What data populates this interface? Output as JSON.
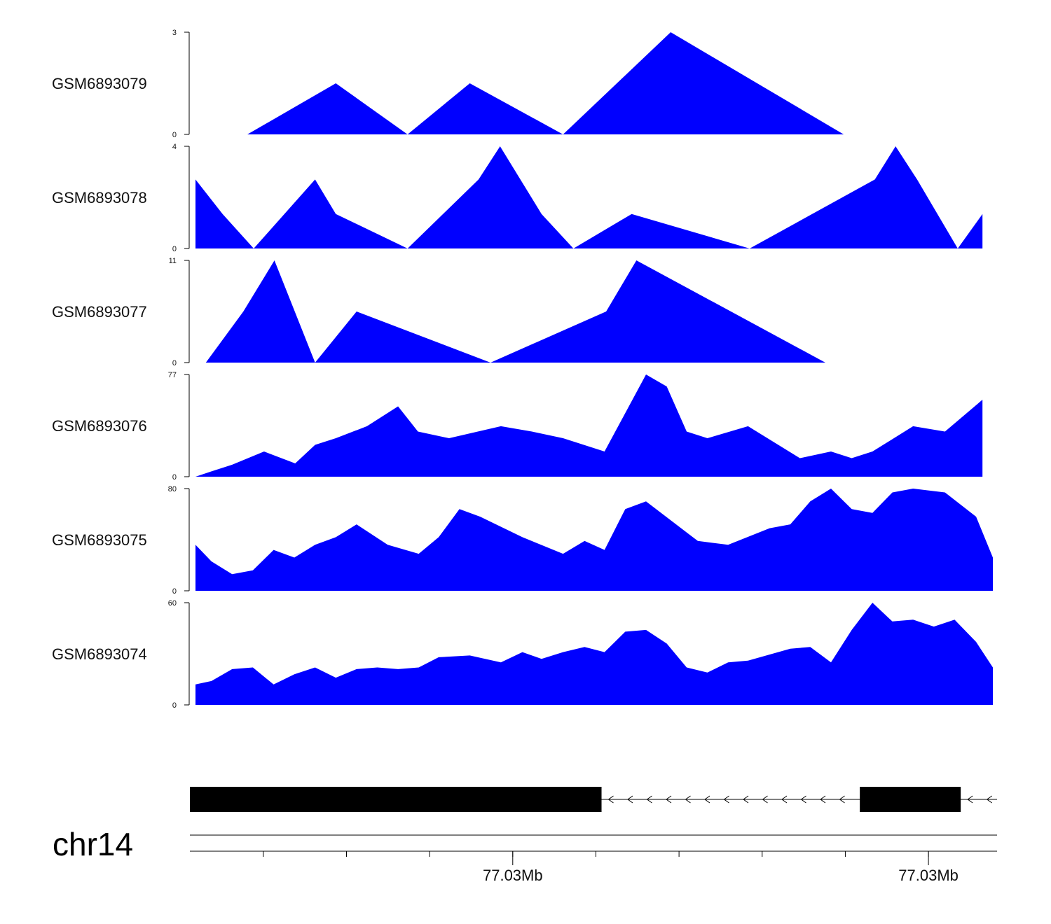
{
  "colors": {
    "fill": "#0000ff",
    "axis": "#000000",
    "gene": "#000000",
    "text": "#111111"
  },
  "chart_data": {
    "type": "area",
    "title": "",
    "x_range": [
      0,
      100
    ],
    "tracks": [
      {
        "name": "GSM6893079",
        "ymax": 3,
        "ymin": 0,
        "ymax_label": "3",
        "ymin_label": "0",
        "x": [
          6.5,
          17.6,
          26.6,
          34.4,
          46.1,
          59.6,
          81.3
        ],
        "values": [
          0,
          1.5,
          0,
          1.5,
          0,
          3,
          0
        ]
      },
      {
        "name": "GSM6893078",
        "ymax": 4,
        "ymin": 0,
        "ymax_label": "4",
        "ymin_label": "0",
        "x": [
          0,
          3.4,
          7.3,
          15.0,
          17.6,
          26.6,
          35.5,
          38.2,
          43.4,
          47.4,
          54.7,
          69.5,
          85.2,
          87.8,
          90.5,
          95.6,
          98.7
        ],
        "values": [
          2.7,
          1.35,
          0,
          2.7,
          1.35,
          0,
          2.7,
          4,
          1.35,
          0,
          1.35,
          0,
          2.7,
          4,
          2.7,
          0,
          1.35
        ]
      },
      {
        "name": "GSM6893077",
        "ymax": 11,
        "ymin": 0,
        "ymax_label": "11",
        "ymin_label": "0",
        "x": [
          1.3,
          6.0,
          9.9,
          15.0,
          20.2,
          37.0,
          51.5,
          55.3,
          79.0
        ],
        "values": [
          0,
          5.5,
          11,
          0,
          5.5,
          0,
          5.5,
          11,
          0
        ]
      },
      {
        "name": "GSM6893076",
        "ymax": 77,
        "ymin": 0,
        "ymax_label": "77",
        "ymin_label": "0",
        "x": [
          0,
          2.0,
          4.6,
          8.6,
          12.5,
          15.0,
          17.6,
          21.5,
          25.4,
          27.9,
          31.8,
          38.3,
          42.2,
          46.1,
          51.3,
          56.5,
          59.1,
          61.6,
          64.2,
          69.3,
          75.8,
          79.7,
          82.3,
          84.9,
          90.0,
          94.0,
          98.7
        ],
        "values": [
          0,
          4,
          9,
          19,
          10,
          24,
          29,
          38,
          53,
          34,
          29,
          38,
          34,
          29,
          19,
          77,
          68,
          34,
          29,
          38,
          14,
          19,
          14,
          19,
          38,
          34,
          58
        ]
      },
      {
        "name": "GSM6893075",
        "ymax": 80,
        "ymin": 0,
        "ymax_label": "80",
        "ymin_label": "0",
        "x": [
          0,
          2.0,
          4.6,
          7.2,
          9.8,
          12.4,
          15.0,
          17.6,
          20.2,
          24.1,
          28.0,
          30.5,
          33.1,
          35.7,
          41.0,
          46.1,
          48.8,
          51.3,
          53.9,
          56.5,
          63.0,
          66.8,
          72.0,
          74.6,
          77.1,
          79.7,
          82.3,
          84.9,
          87.4,
          90.0,
          94.0,
          97.9,
          100
        ],
        "values": [
          36,
          23,
          13,
          16,
          32,
          26,
          36,
          42,
          52,
          36,
          29,
          42,
          64,
          58,
          42,
          29,
          39,
          32,
          64,
          70,
          39,
          36,
          49,
          52,
          70,
          80,
          64,
          61,
          77,
          80,
          77,
          58,
          26
        ]
      },
      {
        "name": "GSM6893074",
        "ymax": 60,
        "ymin": 0,
        "ymax_label": "60",
        "ymin_label": "0",
        "x": [
          0,
          2.0,
          4.6,
          7.2,
          9.8,
          12.4,
          15.0,
          17.6,
          20.2,
          22.8,
          25.4,
          28.0,
          30.5,
          34.4,
          38.3,
          41.0,
          43.4,
          46.1,
          48.8,
          51.3,
          53.9,
          56.5,
          59.1,
          61.6,
          64.2,
          66.8,
          69.3,
          74.6,
          77.1,
          79.7,
          82.3,
          84.9,
          87.4,
          90.0,
          92.6,
          95.2,
          97.9,
          100
        ],
        "values": [
          12,
          14,
          21,
          22,
          12,
          18,
          22,
          16,
          21,
          22,
          21,
          22,
          28,
          29,
          25,
          31,
          27,
          31,
          34,
          31,
          43,
          44,
          36,
          22,
          19,
          25,
          26,
          33,
          34,
          25,
          44,
          60,
          49,
          50,
          46,
          50,
          37,
          22
        ]
      }
    ],
    "gene": {
      "exons": [
        {
          "start": 0,
          "end": 51
        },
        {
          "start": 83,
          "end": 95.5
        }
      ],
      "strand": "-"
    },
    "axis": {
      "chromosome": "chr14",
      "minor_ticks": [
        9.1,
        19.4,
        29.7,
        40,
        50.3,
        60.6,
        70.9,
        81.2,
        91.5
      ],
      "major_ticks": [
        {
          "x": 40,
          "label": "77.03Mb"
        },
        {
          "x": 91.5,
          "label": "77.03Mb"
        }
      ]
    }
  }
}
